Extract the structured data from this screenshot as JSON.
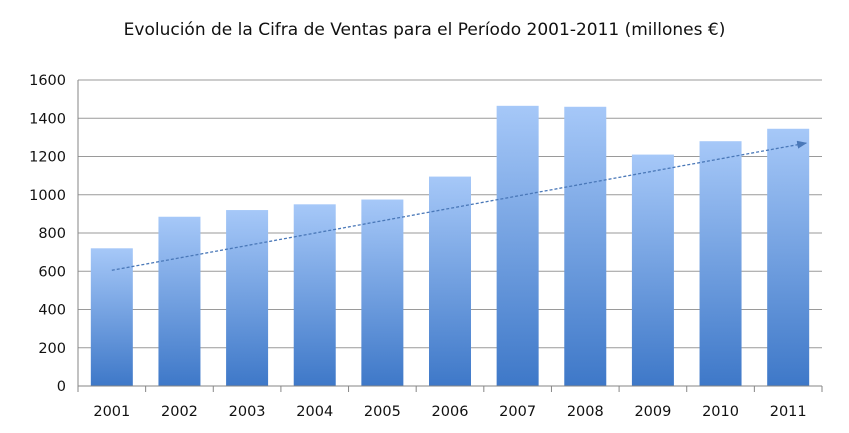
{
  "chart_data": {
    "type": "bar",
    "title": "Evolución de la Cifra de Ventas para el Período 2001-2011 (millones €)",
    "categories": [
      "2001",
      "2002",
      "2003",
      "2004",
      "2005",
      "2006",
      "2007",
      "2008",
      "2009",
      "2010",
      "2011"
    ],
    "values": [
      720,
      885,
      920,
      950,
      975,
      1095,
      1465,
      1460,
      1210,
      1280,
      1345
    ],
    "ylim": [
      0,
      1600
    ],
    "yticks": [
      "0",
      "200",
      "400",
      "600",
      "800",
      "1000",
      "1200",
      "1400",
      "1600"
    ],
    "grid": true,
    "trendline": {
      "type": "linear",
      "start": 605,
      "end": 1270,
      "color": "#4a78b8",
      "style": "dashed",
      "arrow": true
    },
    "bar_color_top": "#a6c8f8",
    "bar_color_bottom": "#3e78c8"
  }
}
